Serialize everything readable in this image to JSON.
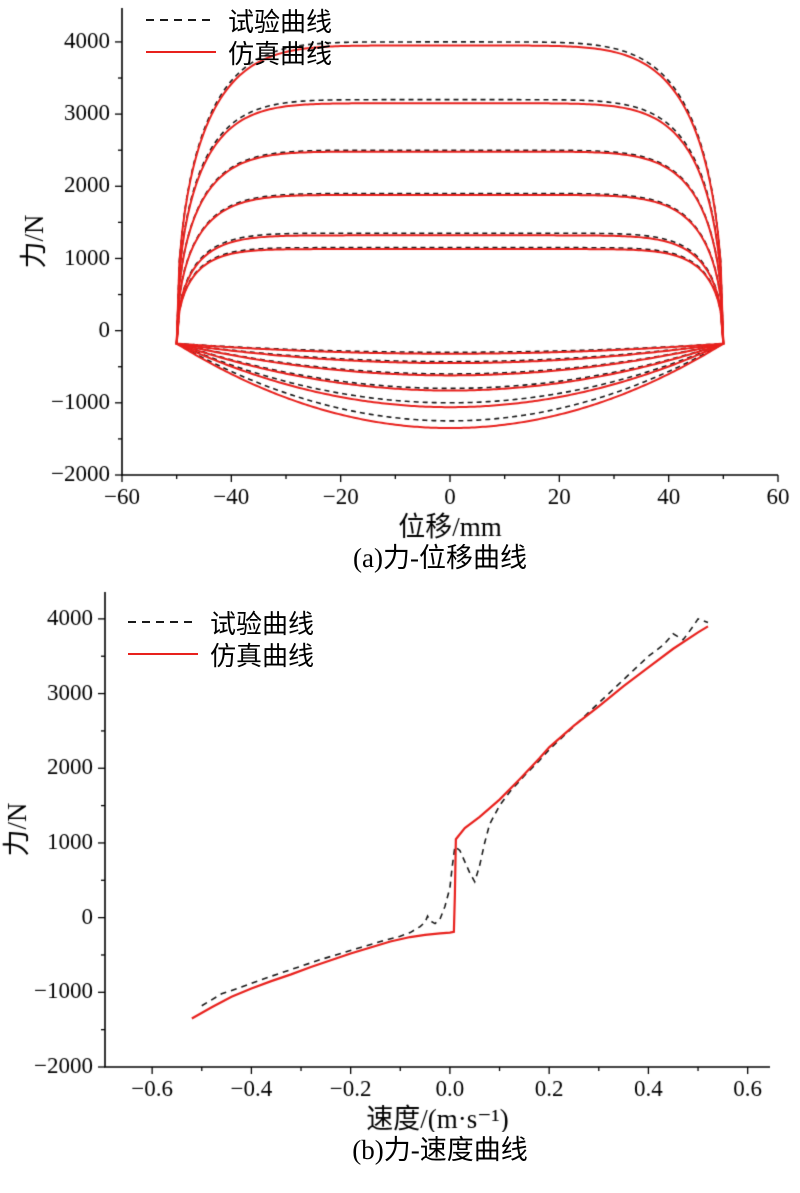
{
  "figure": {
    "background": "#ffffff",
    "legend": {
      "test_label": "试验曲线",
      "sim_label": "仿真曲线"
    },
    "colors": {
      "test": "#1a1a1a",
      "sim": "#e8211d",
      "axis": "#000000"
    }
  },
  "chart_data": [
    {
      "id": "force-displacement",
      "type": "line",
      "caption": "(a)力-位移曲线",
      "xlabel": "位移/mm",
      "ylabel": "力/N",
      "xlim": [
        -60,
        60
      ],
      "ylim": [
        -2000,
        4470
      ],
      "grid": false,
      "legend_position": "top-left",
      "xticks": {
        "values": [
          -60,
          -40,
          -20,
          0,
          20,
          40,
          60
        ],
        "labels": [
          "−60",
          "−40",
          "−20",
          "0",
          "20",
          "40",
          "60"
        ]
      },
      "yticks": {
        "values": [
          -2000,
          -1000,
          0,
          1000,
          2000,
          3000,
          4000
        ],
        "labels": [
          "−2000",
          "−1000",
          "0",
          "1000",
          "2000",
          "3000",
          "4000"
        ]
      },
      "series_labels": [
        "试验曲线",
        "仿真曲线"
      ],
      "loops": {
        "displacement_amplitude_mm": 50,
        "end_force_N": -180,
        "test_peaks_valleys": [
          [
            4000,
            -1250
          ],
          [
            3200,
            -1000
          ],
          [
            2500,
            -800
          ],
          [
            1900,
            -600
          ],
          [
            1350,
            -430
          ],
          [
            1150,
            -300
          ]
        ],
        "sim_peaks_valleys": [
          [
            3950,
            -1350
          ],
          [
            3150,
            -1060
          ],
          [
            2480,
            -830
          ],
          [
            1880,
            -620
          ],
          [
            1320,
            -450
          ],
          [
            1130,
            -320
          ]
        ],
        "top_exponents": [
          6,
          7,
          7.5,
          8,
          9,
          10
        ]
      }
    },
    {
      "id": "force-velocity",
      "type": "line",
      "caption": "(b)力-速度曲线",
      "xlabel": "速度/(m·s⁻¹)",
      "ylabel": "力/N",
      "xlim": [
        -0.695,
        0.645
      ],
      "ylim": [
        -2000,
        4360
      ],
      "grid": false,
      "legend_position": "top-left",
      "xticks": {
        "values": [
          -0.6,
          -0.4,
          -0.2,
          0,
          0.2,
          0.4,
          0.6
        ],
        "labels": [
          "−0.6",
          "−0.4",
          "−0.2",
          "0.0",
          "0.2",
          "0.4",
          "0.6"
        ]
      },
      "yticks": {
        "values": [
          -2000,
          -1000,
          0,
          1000,
          2000,
          3000,
          4000
        ],
        "labels": [
          "−2000",
          "−1000",
          "0",
          "1000",
          "2000",
          "3000",
          "4000"
        ]
      },
      "series": [
        {
          "name": "试验曲线",
          "style": "dashed",
          "points": [
            [
              -0.5,
              -1180
            ],
            [
              -0.46,
              -1020
            ],
            [
              -0.42,
              -930
            ],
            [
              -0.38,
              -830
            ],
            [
              -0.34,
              -740
            ],
            [
              -0.3,
              -650
            ],
            [
              -0.26,
              -560
            ],
            [
              -0.22,
              -480
            ],
            [
              -0.18,
              -400
            ],
            [
              -0.14,
              -320
            ],
            [
              -0.1,
              -250
            ],
            [
              -0.08,
              -200
            ],
            [
              -0.06,
              -120
            ],
            [
              -0.05,
              -60
            ],
            [
              -0.045,
              20
            ],
            [
              -0.04,
              -40
            ],
            [
              -0.03,
              -80
            ],
            [
              -0.02,
              -20
            ],
            [
              -0.01,
              150
            ],
            [
              0.0,
              400
            ],
            [
              0.005,
              700
            ],
            [
              0.01,
              950
            ],
            [
              0.02,
              900
            ],
            [
              0.03,
              750
            ],
            [
              0.04,
              600
            ],
            [
              0.05,
              480
            ],
            [
              0.06,
              700
            ],
            [
              0.07,
              1000
            ],
            [
              0.08,
              1250
            ],
            [
              0.1,
              1500
            ],
            [
              0.12,
              1680
            ],
            [
              0.15,
              1900
            ],
            [
              0.18,
              2100
            ],
            [
              0.2,
              2250
            ],
            [
              0.24,
              2500
            ],
            [
              0.28,
              2750
            ],
            [
              0.32,
              3000
            ],
            [
              0.36,
              3250
            ],
            [
              0.4,
              3500
            ],
            [
              0.43,
              3650
            ],
            [
              0.45,
              3800
            ],
            [
              0.47,
              3720
            ],
            [
              0.49,
              3900
            ],
            [
              0.5,
              4000
            ],
            [
              0.52,
              3950
            ]
          ]
        },
        {
          "name": "仿真曲线",
          "style": "solid",
          "points": [
            [
              -0.52,
              -1350
            ],
            [
              -0.48,
              -1200
            ],
            [
              -0.44,
              -1060
            ],
            [
              -0.4,
              -950
            ],
            [
              -0.36,
              -850
            ],
            [
              -0.32,
              -760
            ],
            [
              -0.28,
              -660
            ],
            [
              -0.24,
              -570
            ],
            [
              -0.2,
              -480
            ],
            [
              -0.16,
              -400
            ],
            [
              -0.12,
              -320
            ],
            [
              -0.08,
              -260
            ],
            [
              -0.05,
              -230
            ],
            [
              -0.02,
              -210
            ],
            [
              0.0,
              -200
            ],
            [
              0.008,
              -190
            ],
            [
              0.01,
              300
            ],
            [
              0.012,
              1050
            ],
            [
              0.03,
              1200
            ],
            [
              0.06,
              1350
            ],
            [
              0.1,
              1580
            ],
            [
              0.14,
              1850
            ],
            [
              0.18,
              2130
            ],
            [
              0.2,
              2280
            ],
            [
              0.25,
              2570
            ],
            [
              0.3,
              2830
            ],
            [
              0.35,
              3100
            ],
            [
              0.4,
              3350
            ],
            [
              0.45,
              3600
            ],
            [
              0.5,
              3820
            ],
            [
              0.52,
              3900
            ]
          ]
        }
      ]
    }
  ]
}
